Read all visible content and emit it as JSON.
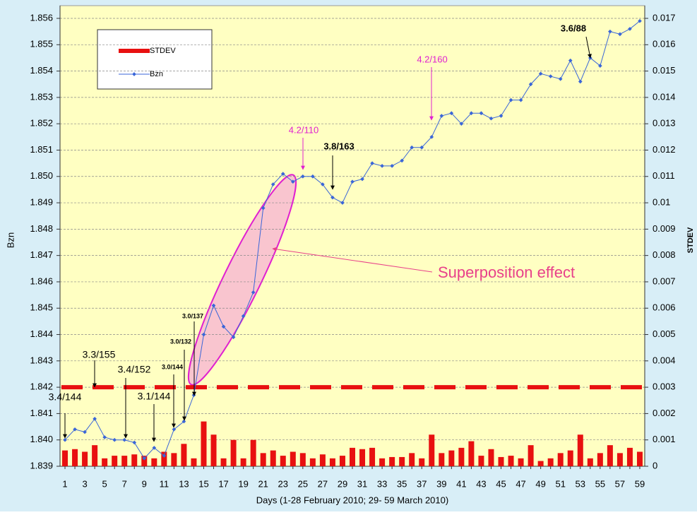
{
  "chart_data": {
    "type": "bar",
    "x_label": "Days (1-28 February 2010; 29- 59 March 2010)",
    "y_label": "Bzn",
    "y2_label": "STDEV",
    "categories": [
      1,
      null,
      3,
      null,
      5,
      null,
      7,
      null,
      9,
      null,
      11,
      null,
      13,
      null,
      15,
      null,
      17,
      null,
      19,
      null,
      21,
      null,
      23,
      null,
      25,
      null,
      27,
      null,
      29,
      null,
      31,
      null,
      33,
      null,
      35,
      null,
      37,
      null,
      39,
      null,
      41,
      null,
      43,
      null,
      45,
      null,
      47,
      null,
      49,
      null,
      51,
      null,
      53,
      null,
      55,
      null,
      57,
      null,
      59
    ],
    "series": [
      {
        "name": "STDEV",
        "type": "bar",
        "axis": "y2",
        "color": "#e81010",
        "values": [
          0.0006,
          0.00065,
          0.00055,
          0.0008,
          0.0003,
          0.0004,
          0.0004,
          0.00045,
          0.0004,
          0.0003,
          0.00055,
          0.0005,
          0.00085,
          0.0003,
          0.0017,
          0.0012,
          0.0003,
          0.001,
          0.0003,
          0.001,
          0.0005,
          0.0006,
          0.0004,
          0.00055,
          0.0005,
          0.0003,
          0.00045,
          0.0003,
          0.0004,
          0.0007,
          0.00065,
          0.0007,
          0.0003,
          0.00035,
          0.00035,
          0.0005,
          0.0003,
          0.0012,
          0.0005,
          0.0006,
          0.0007,
          0.00095,
          0.0004,
          0.00065,
          0.00035,
          0.0004,
          0.0003,
          0.0008,
          0.0002,
          0.0003,
          0.0005,
          0.0006,
          0.0012,
          0.0003,
          0.0005,
          0.0008,
          0.0005,
          0.0007,
          0.00055
        ]
      },
      {
        "name": "Bzn",
        "type": "line",
        "color": "#3a66d8",
        "values": [
          1.84,
          1.8404,
          1.8403,
          1.8408,
          1.8401,
          1.84,
          1.84,
          1.8399,
          1.8393,
          1.8397,
          1.8394,
          1.8404,
          1.8407,
          1.8417,
          1.844,
          1.8451,
          1.8443,
          1.8439,
          1.8447,
          1.8456,
          1.8488,
          1.8497,
          1.8501,
          1.8498,
          1.85,
          1.85,
          1.8497,
          1.8492,
          1.849,
          1.8498,
          1.8499,
          1.8505,
          1.8504,
          1.8504,
          1.8506,
          1.8511,
          1.8511,
          1.8515,
          1.8523,
          1.8524,
          1.852,
          1.8524,
          1.8524,
          1.8522,
          1.8523,
          1.8529,
          1.8529,
          1.8535,
          1.8539,
          1.8538,
          1.8537,
          1.8544,
          1.8536,
          1.8545,
          1.8542,
          1.8555,
          1.8554,
          1.8556,
          1.8559
        ]
      }
    ],
    "threshold": {
      "value": 0.003,
      "axis": "y2",
      "color": "#e81010"
    },
    "ylim": [
      1.839,
      1.856
    ],
    "yticks": [
      1.839,
      {
        "value": 1.84,
        "label": "1.840"
      },
      1.841,
      1.842,
      1.843,
      1.844,
      1.845,
      1.846,
      1.847,
      1.848,
      1.849,
      {
        "value": 1.85,
        "label": "1.850"
      },
      1.851,
      1.852,
      1.853,
      1.854,
      1.855,
      1.856
    ],
    "y2lim": [
      0,
      0.017
    ],
    "y2ticks": [
      0,
      0.001,
      0.002,
      0.003,
      0.004,
      0.005,
      0.006,
      0.007,
      0.008,
      0.009,
      0.01,
      0.011,
      0.012,
      0.013,
      0.014,
      0.015,
      0.016,
      0.017
    ],
    "grid": true,
    "annotations": [
      {
        "text": "3.4/144",
        "x": 1,
        "color": "#000000"
      },
      {
        "text": "3.3/155",
        "x": 4,
        "color": "#000000"
      },
      {
        "text": "3.4/152",
        "x": 7,
        "color": "#000000"
      },
      {
        "text": "3.1/144",
        "x": 10,
        "color": "#000000"
      },
      {
        "text": "3.0/144",
        "x": 12,
        "color": "#000000"
      },
      {
        "text": "3.0/132",
        "x": 13,
        "color": "#000000"
      },
      {
        "text": "3.0/137",
        "x": 14,
        "color": "#000000"
      },
      {
        "text": "4.2/110",
        "x": 25,
        "color": "#e020d0"
      },
      {
        "text": "3.8/163",
        "x": 28,
        "color": "#000000"
      },
      {
        "text": "4.2/160",
        "x": 38,
        "color": "#e020d0"
      },
      {
        "text": "3.6/88",
        "x": 54,
        "color": "#000000"
      },
      {
        "text": "Superposition effect",
        "x": 20,
        "color": "#e8408a"
      }
    ]
  }
}
